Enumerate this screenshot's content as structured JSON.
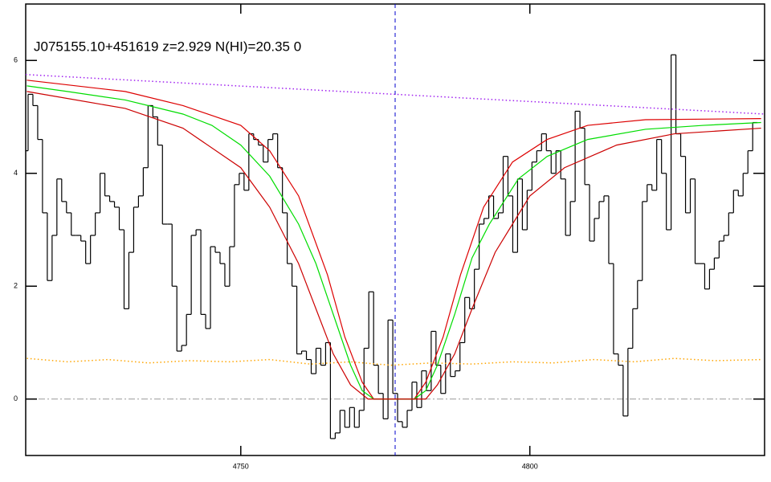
{
  "chart_data": {
    "type": "line",
    "title": "J075155.10+451619 z=2.929 N(HI)=20.35 0",
    "xlim": [
      4712.8,
      4840.6
    ],
    "ylim": [
      -1,
      7
    ],
    "xticks": [
      4750,
      4800
    ],
    "yticks": [
      0,
      2,
      4,
      6
    ],
    "hline": 0,
    "vline": 4776.7,
    "series": [
      {
        "style": "steps",
        "color": "#000000",
        "x": [
          4712.8,
          4713.63,
          4714.46,
          4715.29,
          4716.12,
          4716.95,
          4717.78,
          4718.61,
          4719.44,
          4720.27,
          4721.1,
          4721.93,
          4722.76,
          4723.59,
          4724.42,
          4725.25,
          4726.08,
          4726.91,
          4727.74,
          4728.57,
          4729.4,
          4730.23,
          4731.06,
          4731.89,
          4732.72,
          4733.55,
          4734.38,
          4735.21,
          4736.04,
          4736.87,
          4737.7,
          4738.53,
          4739.36,
          4740.19,
          4741.02,
          4741.85,
          4742.68,
          4743.51,
          4744.34,
          4745.17,
          4746.0,
          4746.83,
          4747.66,
          4748.49,
          4749.32,
          4750.15,
          4750.98,
          4751.81,
          4752.64,
          4753.47,
          4754.3,
          4755.13,
          4755.96,
          4756.79,
          4757.62,
          4758.45,
          4759.28,
          4760.11,
          4760.94,
          4761.77,
          4762.6,
          4763.43,
          4764.26,
          4765.09,
          4765.92,
          4766.75,
          4767.58,
          4768.41,
          4769.24,
          4770.07,
          4770.9,
          4771.73,
          4772.56,
          4773.39,
          4774.22,
          4775.05,
          4775.88,
          4776.71,
          4777.54,
          4778.37,
          4779.2,
          4780.03,
          4780.86,
          4781.69,
          4782.52,
          4783.35,
          4784.18,
          4785.01,
          4785.84,
          4786.67,
          4787.5,
          4788.33,
          4789.16,
          4789.99,
          4790.82,
          4791.65,
          4792.48,
          4793.31,
          4794.14,
          4794.97,
          4795.8,
          4796.63,
          4797.46,
          4798.29,
          4799.12,
          4799.95,
          4800.78,
          4801.61,
          4802.44,
          4803.27,
          4804.1,
          4804.93,
          4805.76,
          4806.59,
          4807.42,
          4808.25,
          4809.08,
          4809.91,
          4810.74,
          4811.57,
          4812.4,
          4813.23,
          4814.06,
          4814.89,
          4815.72,
          4816.55,
          4817.38,
          4818.21,
          4819.04,
          4819.87,
          4820.7,
          4821.53,
          4822.36,
          4823.19,
          4824.02,
          4824.85,
          4825.68,
          4826.51,
          4827.34,
          4828.17,
          4829.0,
          4829.83,
          4830.66,
          4831.49,
          4832.32,
          4833.15,
          4833.98,
          4834.81,
          4835.64,
          4836.47,
          4837.3,
          4838.13,
          4838.96
        ],
        "values": [
          4.4,
          5.4,
          5.2,
          4.6,
          3.3,
          2.1,
          2.9,
          3.9,
          3.5,
          3.3,
          2.9,
          2.9,
          2.8,
          2.4,
          2.9,
          3.3,
          4.0,
          3.6,
          3.5,
          3.4,
          3.0,
          1.6,
          2.6,
          3.4,
          3.6,
          4.1,
          5.2,
          5.0,
          4.5,
          3.1,
          3.1,
          2.0,
          0.85,
          0.95,
          1.5,
          2.9,
          3.0,
          1.5,
          1.25,
          2.7,
          2.6,
          2.4,
          2.0,
          2.7,
          3.8,
          4.0,
          3.7,
          4.7,
          4.6,
          4.5,
          4.2,
          4.6,
          4.7,
          4.1,
          3.3,
          2.4,
          2.0,
          0.8,
          0.85,
          0.7,
          0.45,
          0.9,
          0.6,
          1.0,
          -0.7,
          -0.6,
          -0.2,
          -0.5,
          -0.15,
          -0.5,
          -0.2,
          0.9,
          1.9,
          0.6,
          0.1,
          -0.35,
          1.4,
          0.1,
          -0.4,
          -0.5,
          -0.2,
          0.3,
          -0.15,
          0.5,
          0.15,
          1.2,
          0.6,
          0.1,
          0.8,
          0.4,
          0.5,
          1.0,
          1.8,
          1.6,
          2.3,
          3.1,
          3.2,
          3.6,
          3.2,
          3.3,
          4.3,
          3.6,
          2.6,
          3.9,
          3.0,
          3.7,
          4.2,
          4.4,
          4.7,
          4.4,
          4.0,
          4.4,
          3.9,
          2.9,
          3.5,
          5.1,
          4.8,
          3.8,
          2.8,
          3.2,
          3.5,
          3.6,
          2.4,
          0.8,
          0.6,
          -0.3,
          0.9,
          1.6,
          2.1,
          3.5,
          3.8,
          3.7,
          4.6,
          4.0,
          3.0,
          6.1,
          4.7,
          4.3,
          3.3,
          3.9,
          2.4,
          2.4,
          1.95,
          2.3,
          2.5,
          2.8,
          2.9,
          3.3,
          3.7,
          3.6,
          4.0,
          4.4,
          4.9
        ]
      },
      {
        "style": "dotted",
        "color": "#a020f0",
        "x": [
          4712.8,
          4840.6
        ],
        "values": [
          5.75,
          5.05
        ]
      },
      {
        "style": "dotted",
        "color": "#ffa500",
        "x": [
          4713,
          4720,
          4727,
          4734,
          4741,
          4748,
          4755,
          4762,
          4769,
          4776,
          4783,
          4790,
          4797,
          4804,
          4811,
          4818,
          4825,
          4832,
          4840
        ],
        "values": [
          0.72,
          0.66,
          0.7,
          0.64,
          0.68,
          0.66,
          0.7,
          0.62,
          0.66,
          0.6,
          0.64,
          0.62,
          0.66,
          0.64,
          0.7,
          0.66,
          0.72,
          0.68,
          0.7
        ]
      },
      {
        "style": "solid",
        "color": "#dd0000",
        "x": [
          4713,
          4730,
          4740,
          4750,
          4755,
          4760,
          4765,
          4768,
          4771,
          4773,
          4780,
          4782,
          4785,
          4788,
          4792,
          4797,
          4803,
          4810,
          4820,
          4840
        ],
        "values": [
          5.65,
          5.45,
          5.2,
          4.85,
          4.4,
          3.6,
          2.2,
          1.1,
          0.3,
          0.0,
          0.0,
          0.3,
          1.1,
          2.2,
          3.4,
          4.2,
          4.6,
          4.85,
          4.95,
          4.97
        ]
      },
      {
        "style": "solid",
        "color": "#00dd00",
        "x": [
          4713,
          4720,
          4730,
          4740,
          4745,
          4750,
          4755,
          4760,
          4763,
          4766,
          4769,
          4771,
          4773,
          4776.7,
          4780,
          4782,
          4784,
          4787,
          4790,
          4793,
          4798,
          4803,
          4810,
          4820,
          4830,
          4840
        ],
        "values": [
          5.55,
          5.45,
          5.3,
          5.05,
          4.85,
          4.5,
          3.95,
          3.1,
          2.4,
          1.5,
          0.6,
          0.15,
          0.0,
          0.0,
          0.0,
          0.15,
          0.6,
          1.5,
          2.5,
          3.1,
          3.9,
          4.3,
          4.6,
          4.78,
          4.85,
          4.9
        ]
      },
      {
        "style": "solid",
        "color": "#cc0000",
        "x": [
          4713,
          4730,
          4740,
          4750,
          4755,
          4760,
          4763,
          4766,
          4769,
          4772,
          4782,
          4784,
          4787,
          4790,
          4794,
          4800,
          4806,
          4815,
          4825,
          4840
        ],
        "values": [
          5.45,
          5.15,
          4.8,
          4.1,
          3.4,
          2.4,
          1.6,
          0.8,
          0.25,
          0.0,
          0.0,
          0.25,
          0.8,
          1.6,
          2.6,
          3.6,
          4.1,
          4.5,
          4.7,
          4.8
        ]
      }
    ]
  }
}
